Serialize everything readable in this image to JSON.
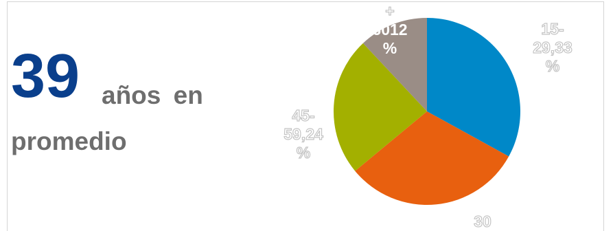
{
  "headline": {
    "value": "39",
    "caption_line1": "años en",
    "caption_line2": "promedio"
  },
  "chart_data": {
    "type": "pie",
    "title": "",
    "slices": [
      {
        "label_lines": [
          "15-",
          "29,33",
          "%"
        ],
        "value": 33,
        "color": "#0088c8"
      },
      {
        "label_lines": [
          "30"
        ],
        "value": 31,
        "color": "#e8600f"
      },
      {
        "label_lines": [
          "45-",
          "59,24",
          "%"
        ],
        "value": 24,
        "color": "#a3b000"
      },
      {
        "label_lines": [
          "+",
          "6012",
          "%"
        ],
        "value": 12,
        "color": "#9a8d86"
      }
    ]
  }
}
